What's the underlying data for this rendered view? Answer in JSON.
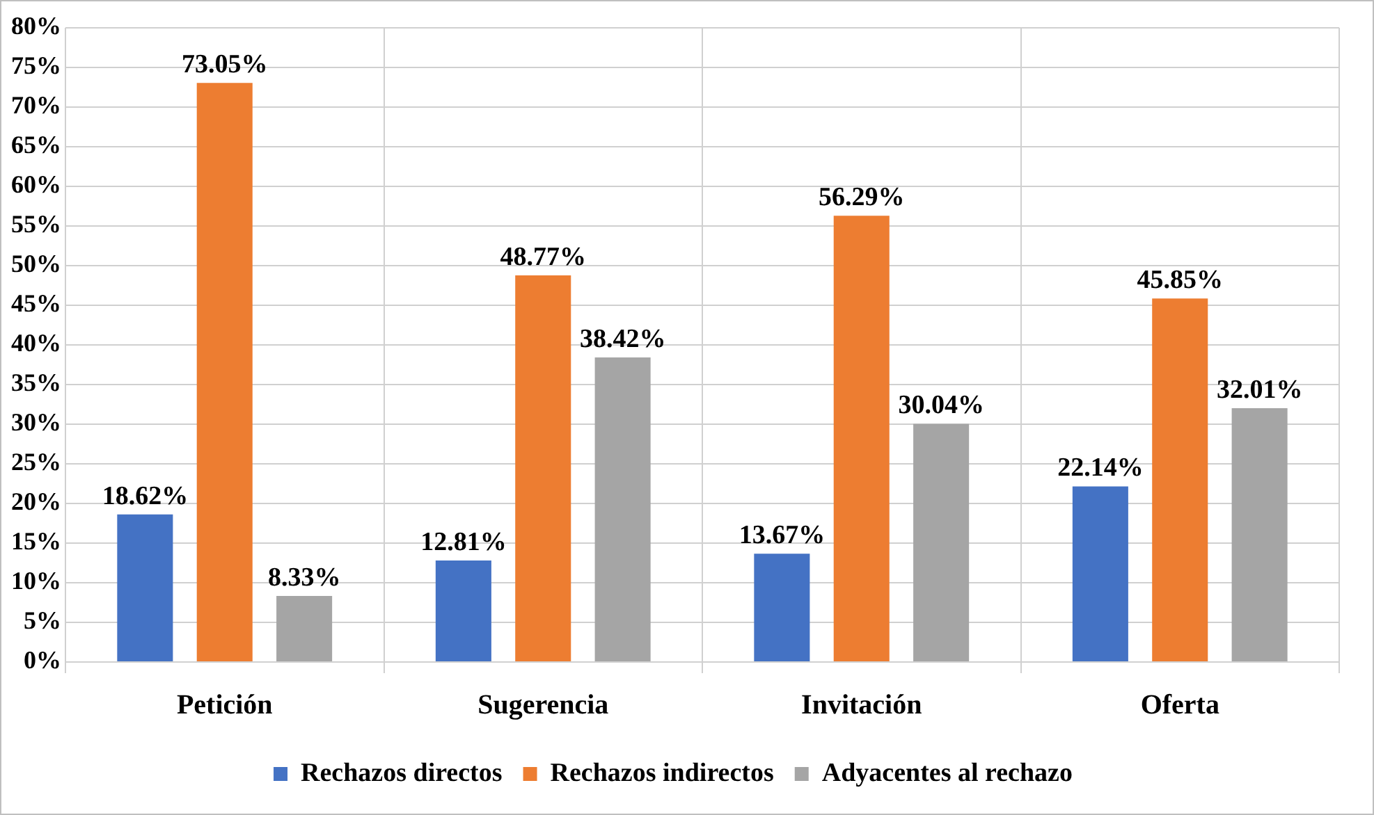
{
  "chart_data": {
    "type": "bar",
    "categories": [
      "Petición",
      "Sugerencia",
      "Invitación",
      "Oferta"
    ],
    "series": [
      {
        "name": "Rechazos directos",
        "color": "#4472c4",
        "values": [
          18.62,
          12.81,
          13.67,
          22.14
        ],
        "value_labels": [
          "18.62%",
          "12.81%",
          "13.67%",
          "22.14%"
        ]
      },
      {
        "name": "Rechazos indirectos",
        "color": "#ed7d31",
        "values": [
          73.05,
          48.77,
          56.29,
          45.85
        ],
        "value_labels": [
          "73.05%",
          "48.77%",
          "56.29%",
          "45.85%"
        ]
      },
      {
        "name": "Adyacentes al rechazo",
        "color": "#a5a5a5",
        "values": [
          8.33,
          38.42,
          30.04,
          32.01
        ],
        "value_labels": [
          "8.33%",
          "38.42%",
          "30.04%",
          "32.01%"
        ]
      }
    ],
    "ylim": [
      0,
      80
    ],
    "yticks": [
      {
        "value": 0,
        "label": "0%"
      },
      {
        "value": 5,
        "label": "5%"
      },
      {
        "value": 10,
        "label": "10%"
      },
      {
        "value": 15,
        "label": "15%"
      },
      {
        "value": 20,
        "label": "20%"
      },
      {
        "value": 25,
        "label": "25%"
      },
      {
        "value": 30,
        "label": "30%"
      },
      {
        "value": 35,
        "label": "35%"
      },
      {
        "value": 40,
        "label": "40%"
      },
      {
        "value": 45,
        "label": "45%"
      },
      {
        "value": 50,
        "label": "50%"
      },
      {
        "value": 55,
        "label": "55%"
      },
      {
        "value": 60,
        "label": "60%"
      },
      {
        "value": 65,
        "label": "65%"
      },
      {
        "value": 70,
        "label": "70%"
      },
      {
        "value": 75,
        "label": "75%"
      },
      {
        "value": 80,
        "label": "80%"
      }
    ],
    "grid": true,
    "legend": "bottom"
  }
}
